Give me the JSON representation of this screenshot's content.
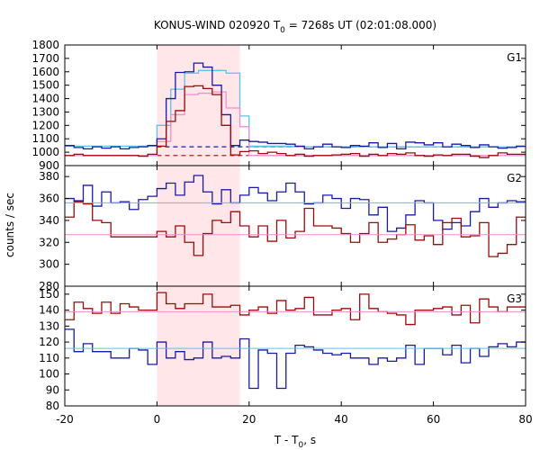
{
  "chart_data": {
    "type": "line",
    "title": "KONUS-WIND 020920 T",
    "title_sub": "0",
    "title_rest": " = 7268s UT (02:01:08.000)",
    "xlabel": "T - T",
    "xlabel_sub": "0",
    "xlabel_rest": ", s",
    "ylabel": "counts / sec",
    "xlim": [
      -20,
      80
    ],
    "x_ticks": [
      "-20",
      "0",
      "20",
      "40",
      "60",
      "80"
    ],
    "x_tick_values": [
      -20,
      0,
      20,
      40,
      60,
      80
    ],
    "highlight_interval": [
      0,
      18
    ],
    "highlight_color": "#ffe6e8",
    "line_colors": {
      "blue": "#1a1aa6",
      "red": "#9e0a0a",
      "cyan": "#5ac3e8",
      "pink": "#f08cd2"
    },
    "bin_edges": [
      -20,
      -18,
      -16,
      -14,
      -12,
      -10,
      -8,
      -6,
      -4,
      -2,
      0,
      2,
      4,
      6,
      8,
      10,
      12,
      14,
      16,
      18,
      20,
      22,
      24,
      26,
      28,
      30,
      32,
      34,
      36,
      38,
      40,
      42,
      44,
      46,
      48,
      50,
      52,
      54,
      56,
      58,
      60,
      62,
      64,
      66,
      68,
      70,
      72,
      74,
      76,
      78,
      80
    ],
    "panels": [
      {
        "label": "G1",
        "ylim": [
          900,
          1800
        ],
        "y_ticks": [
          "900",
          "1000",
          "1100",
          "1200",
          "1300",
          "1400",
          "1500",
          "1600",
          "1700",
          "1800"
        ],
        "y_tick_values": [
          900,
          1000,
          1100,
          1200,
          1300,
          1400,
          1500,
          1600,
          1700,
          1800
        ],
        "series": [
          {
            "color": "cyan",
            "x": [
              -20,
              0,
              3,
              6,
              9,
              12,
              15,
              18,
              20,
              26,
              30,
              80
            ],
            "values": [
              1045,
              1200,
              1470,
              1590,
              1610,
              1610,
              1590,
              1270,
              1045,
              1045,
              1040,
              1040
            ]
          },
          {
            "color": "pink",
            "x": [
              -20,
              0,
              3,
              6,
              9,
              12,
              15,
              18,
              20,
              80
            ],
            "values": [
              975,
              1080,
              1280,
              1430,
              1440,
              1450,
              1330,
              1190,
              975,
              975
            ]
          },
          {
            "color": "blue",
            "values": [
              1050,
              1035,
              1025,
              1040,
              1030,
              1040,
              1025,
              1035,
              1040,
              1050,
              1100,
              1400,
              1595,
              1600,
              1665,
              1635,
              1500,
              1280,
              1050,
              1090,
              1080,
              1075,
              1065,
              1065,
              1060,
              1045,
              1025,
              1040,
              1060,
              1040,
              1035,
              1050,
              1045,
              1070,
              1035,
              1065,
              1025,
              1075,
              1070,
              1055,
              1070,
              1040,
              1060,
              1050,
              1035,
              1055,
              1040,
              1030,
              1035,
              1045
            ]
          },
          {
            "color": "red",
            "values": [
              975,
              985,
              975,
              975,
              975,
              975,
              975,
              975,
              970,
              985,
              1045,
              1230,
              1310,
              1490,
              1495,
              1475,
              1430,
              1200,
              980,
              1005,
              1010,
              990,
              1000,
              990,
              975,
              985,
              970,
              975,
              975,
              980,
              985,
              990,
              970,
              985,
              975,
              990,
              985,
              995,
              975,
              970,
              980,
              975,
              985,
              985,
              970,
              960,
              975,
              995,
              985,
              985
            ]
          }
        ],
        "bkg_lines": [
          {
            "color": "blue",
            "x": [
              0,
              70
            ],
            "y": 1040
          },
          {
            "color": "red",
            "x": [
              0,
              70
            ],
            "y": 975
          }
        ],
        "bkg_solid": [
          {
            "color": "cyan",
            "x": [
              20,
              80
            ],
            "y": 1040
          },
          {
            "color": "pink",
            "x": [
              20,
              80
            ],
            "y": 975
          }
        ]
      },
      {
        "label": "G2",
        "ylim": [
          280,
          390
        ],
        "y_ticks": [
          "280",
          "300",
          "320",
          "340",
          "360",
          "380"
        ],
        "y_tick_values": [
          280,
          300,
          320,
          340,
          360,
          380
        ],
        "series": [
          {
            "color": "blue",
            "values": [
              360,
              358,
              372,
              353,
              366,
              356,
              357,
              350,
              359,
              362,
              369,
              374,
              363,
              375,
              381,
              366,
              355,
              368,
              356,
              363,
              370,
              365,
              358,
              366,
              374,
              366,
              355,
              356,
              363,
              360,
              351,
              360,
              359,
              345,
              352,
              330,
              333,
              345,
              358,
              356,
              340,
              332,
              338,
              335,
              348,
              360,
              352,
              356,
              358,
              357
            ]
          },
          {
            "color": "red",
            "values": [
              343,
              357,
              355,
              340,
              338,
              325,
              325,
              325,
              325,
              325,
              330,
              325,
              335,
              320,
              308,
              328,
              340,
              338,
              348,
              335,
              325,
              335,
              321,
              340,
              324,
              330,
              351,
              335,
              335,
              333,
              328,
              320,
              328,
              338,
              320,
              323,
              327,
              336,
              322,
              326,
              318,
              338,
              342,
              325,
              326,
              338,
              307,
              310,
              318,
              343
            ]
          },
          {
            "color": "cyan",
            "flat": 356
          },
          {
            "color": "pink",
            "flat": 327
          }
        ]
      },
      {
        "label": "G3",
        "ylim": [
          80,
          155
        ],
        "y_ticks": [
          "80",
          "90",
          "100",
          "110",
          "120",
          "130",
          "140",
          "150"
        ],
        "y_tick_values": [
          80,
          90,
          100,
          110,
          120,
          130,
          140,
          150
        ],
        "series": [
          {
            "color": "red",
            "values": [
              134,
              145,
              141,
              138,
              145,
              138,
              144,
              142,
              140,
              140,
              151,
              144,
              141,
              144,
              144,
              150,
              142,
              142,
              143,
              137,
              140,
              142,
              138,
              146,
              140,
              141,
              148,
              137,
              137,
              140,
              141,
              134,
              150,
              141,
              139,
              138,
              137,
              131,
              140,
              140,
              141,
              142,
              137,
              143,
              132,
              147,
              142,
              139,
              142,
              142
            ]
          },
          {
            "color": "blue",
            "values": [
              128,
              114,
              119,
              114,
              114,
              110,
              110,
              116,
              115,
              106,
              120,
              110,
              114,
              109,
              110,
              120,
              110,
              111,
              110,
              122,
              91,
              115,
              113,
              91,
              113,
              118,
              117,
              115,
              113,
              112,
              113,
              110,
              110,
              106,
              110,
              108,
              110,
              118,
              106,
              116,
              116,
              112,
              118,
              107,
              116,
              111,
              117,
              119,
              117,
              120
            ]
          },
          {
            "color": "pink",
            "flat": 139
          },
          {
            "color": "cyan",
            "flat": 116
          }
        ]
      }
    ]
  }
}
